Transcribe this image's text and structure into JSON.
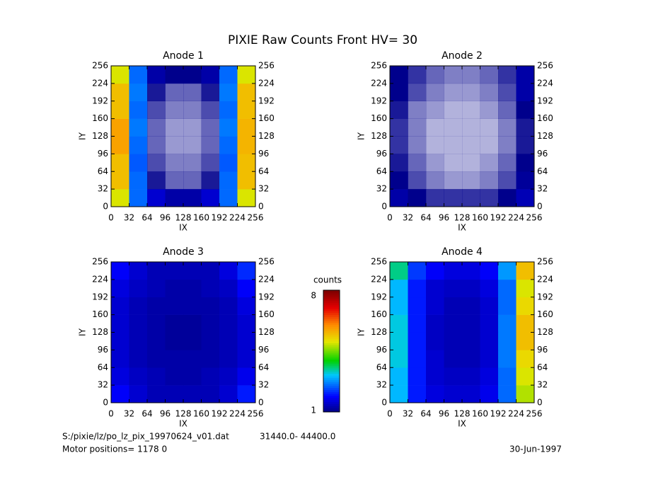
{
  "title": "PIXIE Raw Counts Front HV= 30",
  "colorbar": {
    "label": "counts",
    "range": [
      1,
      8
    ]
  },
  "footer": {
    "file": "S:/pixie/lz/po_lz_pix_19970624_v01.dat",
    "interval": "31440.0- 44400.0",
    "motor": "Motor positions= 1178 0",
    "date": "30-Jun-1997"
  },
  "chart_data": [
    {
      "type": "heatmap",
      "title": "Anode 1",
      "xlabel": "IX",
      "ylabel": "IY",
      "xlim": [
        0,
        256
      ],
      "ylim": [
        0,
        256
      ],
      "xticks": [
        0,
        32,
        64,
        96,
        128,
        160,
        192,
        224,
        256
      ],
      "yticks": [
        0,
        32,
        64,
        96,
        128,
        160,
        192,
        224,
        256
      ],
      "values": [
        [
          5,
          2.5,
          1.5,
          1.2,
          1.2,
          1.5,
          2.5,
          5
        ],
        [
          5.5,
          2.5,
          0.9,
          0.6,
          0.6,
          0.9,
          2.5,
          5.5
        ],
        [
          5.5,
          2.4,
          0.7,
          0.5,
          0.5,
          0.7,
          2.4,
          5.5
        ],
        [
          5.8,
          2.5,
          0.6,
          0.4,
          0.4,
          0.6,
          2.5,
          5.6
        ],
        [
          5.8,
          2.6,
          0.6,
          0.4,
          0.4,
          0.6,
          2.6,
          5.6
        ],
        [
          5.5,
          2.5,
          0.7,
          0.5,
          0.5,
          0.7,
          2.5,
          5.5
        ],
        [
          5.5,
          2.6,
          0.9,
          0.6,
          0.6,
          0.9,
          2.6,
          5.5
        ],
        [
          5,
          2.5,
          1.2,
          1,
          1,
          1.2,
          2.5,
          5
        ]
      ]
    },
    {
      "type": "heatmap",
      "title": "Anode 2",
      "xlabel": "IX",
      "ylabel": "IY",
      "xlim": [
        0,
        256
      ],
      "ylim": [
        0,
        256
      ],
      "xticks": [
        0,
        32,
        64,
        96,
        128,
        160,
        192,
        224,
        256
      ],
      "yticks": [
        0,
        32,
        64,
        96,
        128,
        160,
        192,
        224,
        256
      ],
      "values": [
        [
          1.2,
          1,
          0.8,
          0.8,
          0.8,
          0.8,
          1,
          1.3
        ],
        [
          1,
          0.7,
          0.5,
          0.4,
          0.4,
          0.5,
          0.7,
          1.1
        ],
        [
          0.9,
          0.6,
          0.4,
          0.3,
          0.3,
          0.4,
          0.6,
          1
        ],
        [
          0.8,
          0.5,
          0.3,
          0.3,
          0.3,
          0.3,
          0.5,
          0.9
        ],
        [
          0.8,
          0.5,
          0.3,
          0.3,
          0.3,
          0.3,
          0.5,
          0.9
        ],
        [
          0.9,
          0.5,
          0.4,
          0.3,
          0.3,
          0.4,
          0.6,
          1
        ],
        [
          1,
          0.7,
          0.5,
          0.4,
          0.4,
          0.5,
          0.7,
          1.2
        ],
        [
          1,
          0.8,
          0.6,
          0.5,
          0.5,
          0.6,
          0.8,
          1.2
        ]
      ]
    },
    {
      "type": "heatmap",
      "title": "Anode 3",
      "xlabel": "IX",
      "ylabel": "IY",
      "xlim": [
        0,
        256
      ],
      "ylim": [
        0,
        256
      ],
      "xticks": [
        0,
        32,
        64,
        96,
        128,
        160,
        192,
        224,
        256
      ],
      "yticks": [
        0,
        32,
        64,
        96,
        128,
        160,
        192,
        224,
        256
      ],
      "values": [
        [
          1.8,
          1.5,
          1.3,
          1.3,
          1.3,
          1.3,
          1.5,
          2
        ],
        [
          1.6,
          1.4,
          1.3,
          1.2,
          1.2,
          1.3,
          1.4,
          1.7
        ],
        [
          1.5,
          1.3,
          1.2,
          1.2,
          1.2,
          1.2,
          1.3,
          1.5
        ],
        [
          1.5,
          1.3,
          1.2,
          1.1,
          1.1,
          1.2,
          1.3,
          1.5
        ],
        [
          1.5,
          1.3,
          1.2,
          1.1,
          1.1,
          1.2,
          1.3,
          1.5
        ],
        [
          1.5,
          1.3,
          1.2,
          1.2,
          1.2,
          1.2,
          1.3,
          1.6
        ],
        [
          1.6,
          1.4,
          1.3,
          1.2,
          1.2,
          1.3,
          1.4,
          1.8
        ],
        [
          1.8,
          1.5,
          1.3,
          1.3,
          1.3,
          1.3,
          1.6,
          2.1
        ]
      ]
    },
    {
      "type": "heatmap",
      "title": "Anode 4",
      "xlabel": "IX",
      "ylabel": "IY",
      "xlim": [
        0,
        256
      ],
      "ylim": [
        0,
        256
      ],
      "xticks": [
        0,
        32,
        64,
        96,
        128,
        160,
        192,
        224,
        256
      ],
      "yticks": [
        0,
        32,
        64,
        96,
        128,
        160,
        192,
        224,
        256
      ],
      "values": [
        [
          3,
          2,
          1.6,
          1.5,
          1.5,
          1.7,
          2.5,
          4.8
        ],
        [
          3,
          2,
          1.5,
          1.4,
          1.4,
          1.6,
          2.5,
          5
        ],
        [
          3.2,
          2,
          1.5,
          1.3,
          1.3,
          1.5,
          2.6,
          5.2
        ],
        [
          3.2,
          2,
          1.4,
          1.3,
          1.3,
          1.5,
          2.6,
          5.5
        ],
        [
          3.2,
          2,
          1.4,
          1.3,
          1.3,
          1.5,
          2.6,
          5.5
        ],
        [
          3,
          2,
          1.5,
          1.3,
          1.3,
          1.5,
          2.5,
          5.2
        ],
        [
          3,
          2,
          1.5,
          1.4,
          1.4,
          1.6,
          2.5,
          5
        ],
        [
          3.5,
          2.2,
          1.8,
          1.6,
          1.6,
          1.8,
          2.8,
          5.5
        ]
      ]
    }
  ]
}
